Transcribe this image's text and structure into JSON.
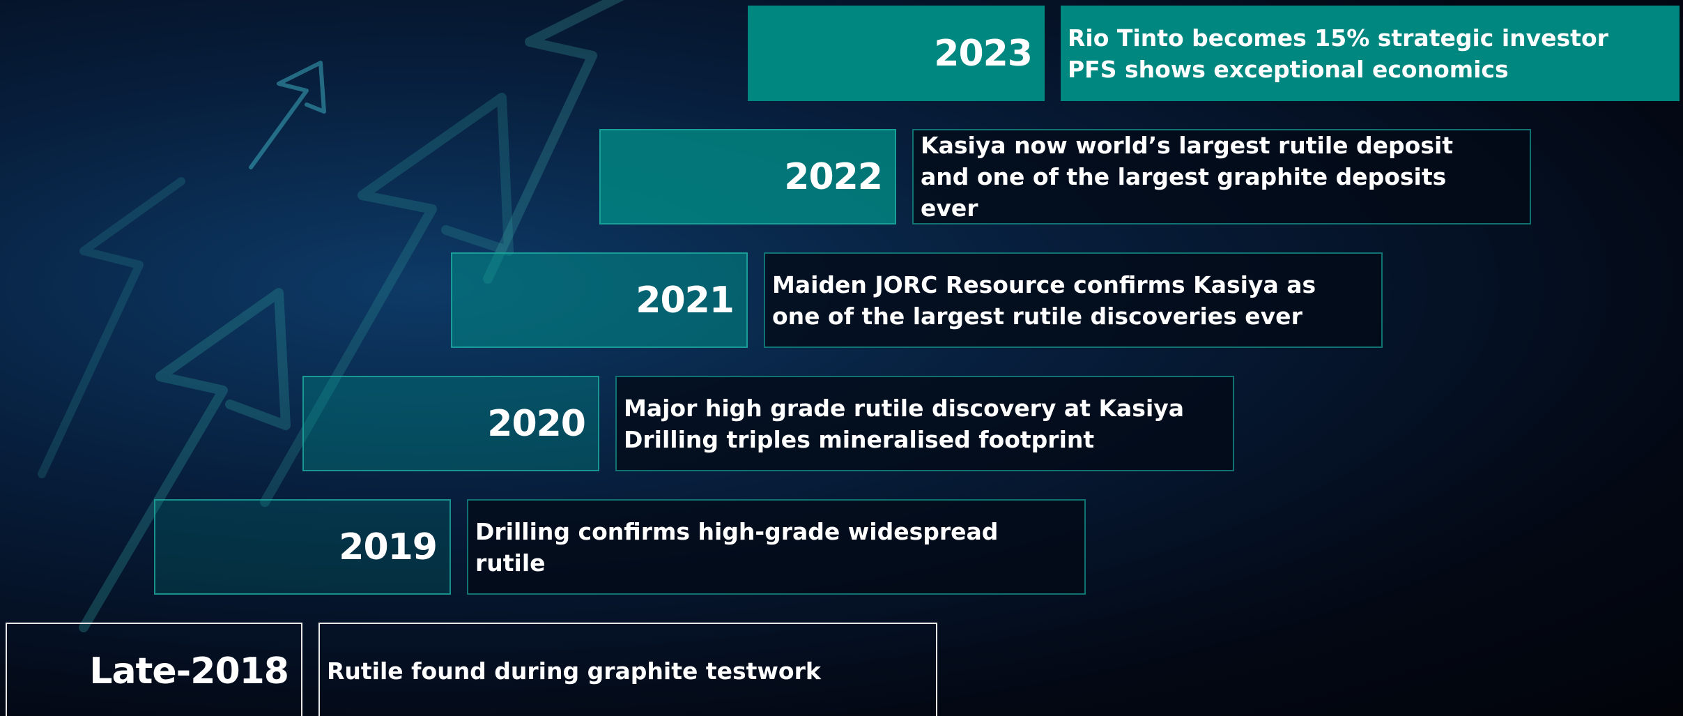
{
  "timeline": [
    {
      "year": "2023",
      "lines": [
        "Rio Tinto becomes 15% strategic investor",
        "PFS shows exceptional economics"
      ]
    },
    {
      "year": "2022",
      "lines": [
        "Kasiya now world’s largest rutile deposit",
        "and one of the largest graphite deposits",
        "ever"
      ]
    },
    {
      "year": "2021",
      "lines": [
        "Maiden JORC Resource confirms Kasiya as",
        "one of the largest rutile discoveries ever"
      ]
    },
    {
      "year": "2020",
      "lines": [
        "Major high grade rutile discovery at Kasiya",
        "Drilling triples mineralised footprint"
      ]
    },
    {
      "year": "2019",
      "lines": [
        "Drilling confirms high-grade widespread",
        "rutile"
      ]
    },
    {
      "year": "Late-2018",
      "lines": [
        "Rutile found during graphite testwork"
      ]
    }
  ]
}
